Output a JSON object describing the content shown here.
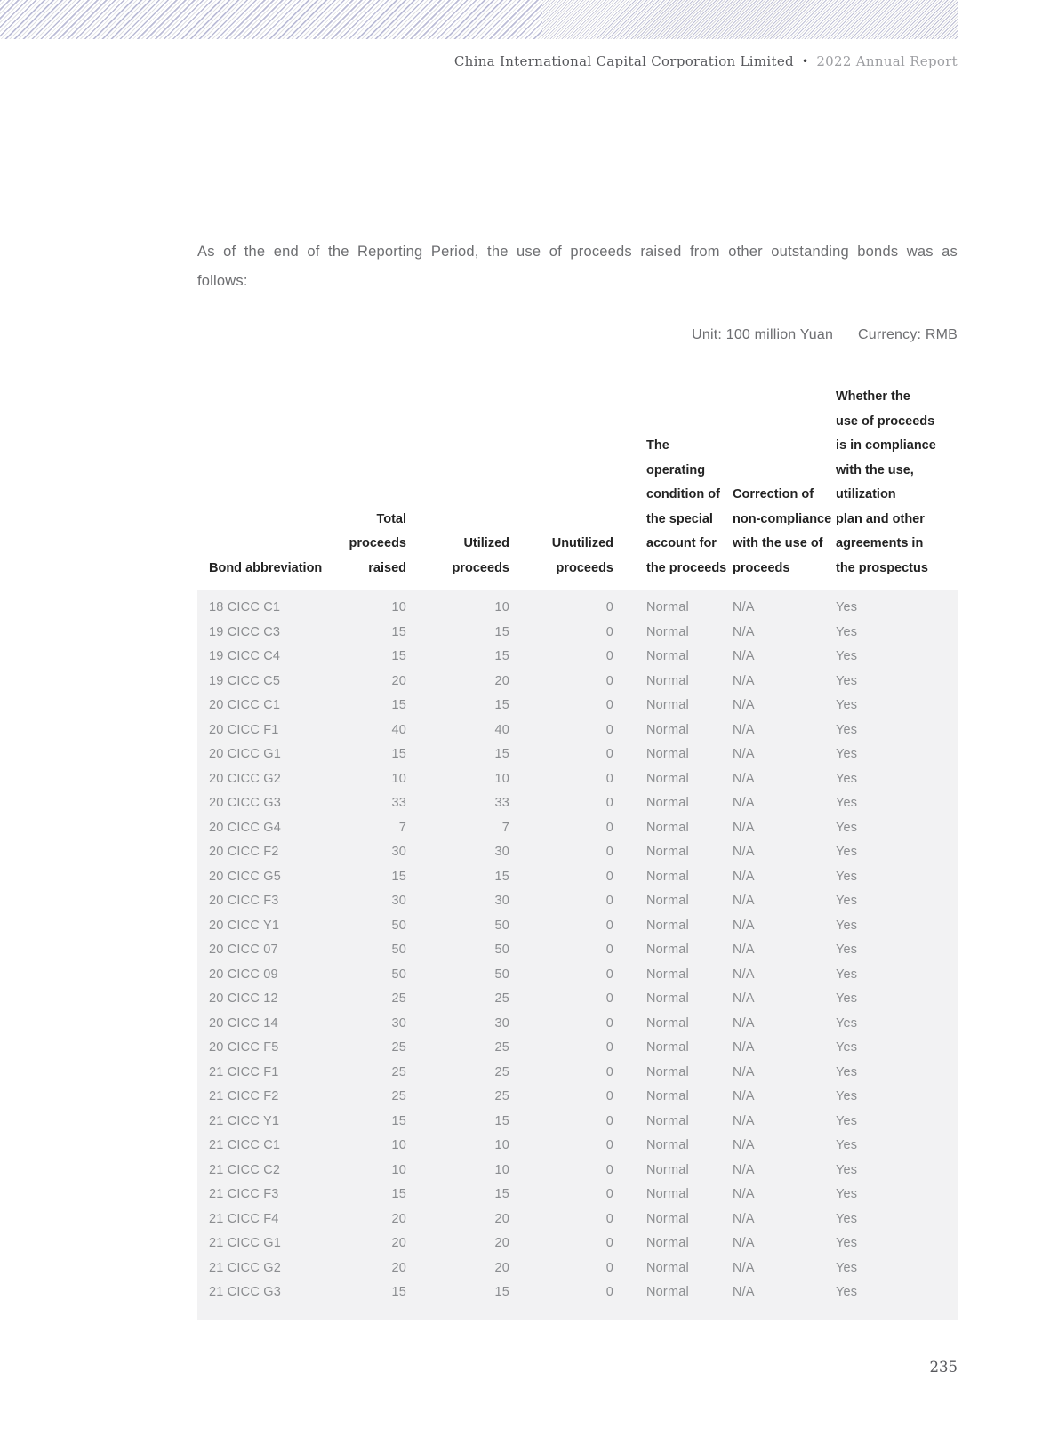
{
  "header": {
    "company": "China International Capital Corporation Limited",
    "separator": "•",
    "report": "2022 Annual Report"
  },
  "intro": {
    "line1": "As of the end of the Reporting Period, the use of proceeds raised from other outstanding bonds was as",
    "line2": "follows:"
  },
  "notes": {
    "unit": "Unit: 100 million Yuan",
    "currency": "Currency: RMB"
  },
  "table": {
    "columns": [
      {
        "id": "bond",
        "align": "left",
        "lines": [
          "Bond abbreviation"
        ]
      },
      {
        "id": "total",
        "align": "right",
        "lines": [
          "Total proceeds",
          "raised"
        ]
      },
      {
        "id": "utilized",
        "align": "right",
        "lines": [
          "Utilized",
          "proceeds"
        ]
      },
      {
        "id": "unutilized",
        "align": "right",
        "lines": [
          "Unutilized",
          "proceeds"
        ]
      },
      {
        "id": "operating",
        "align": "left",
        "lines": [
          "The",
          "operating",
          "condition of",
          "the special",
          "account for",
          "the proceeds"
        ]
      },
      {
        "id": "correction",
        "align": "left",
        "lines": [
          "Correction of",
          "non-compliance",
          "with the use of",
          "proceeds"
        ]
      },
      {
        "id": "compliance",
        "align": "left",
        "lines": [
          "Whether the",
          "use of proceeds",
          "is in compliance",
          "with the use,",
          "utilization",
          "plan and other",
          "agreements in",
          "the prospectus"
        ]
      }
    ],
    "rows": [
      [
        "18 CICC C1",
        "10",
        "10",
        "0",
        "Normal",
        "N/A",
        "Yes"
      ],
      [
        "19 CICC C3",
        "15",
        "15",
        "0",
        "Normal",
        "N/A",
        "Yes"
      ],
      [
        "19 CICC C4",
        "15",
        "15",
        "0",
        "Normal",
        "N/A",
        "Yes"
      ],
      [
        "19 CICC C5",
        "20",
        "20",
        "0",
        "Normal",
        "N/A",
        "Yes"
      ],
      [
        "20 CICC C1",
        "15",
        "15",
        "0",
        "Normal",
        "N/A",
        "Yes"
      ],
      [
        "20 CICC F1",
        "40",
        "40",
        "0",
        "Normal",
        "N/A",
        "Yes"
      ],
      [
        "20 CICC G1",
        "15",
        "15",
        "0",
        "Normal",
        "N/A",
        "Yes"
      ],
      [
        "20 CICC G2",
        "10",
        "10",
        "0",
        "Normal",
        "N/A",
        "Yes"
      ],
      [
        "20 CICC G3",
        "33",
        "33",
        "0",
        "Normal",
        "N/A",
        "Yes"
      ],
      [
        "20 CICC G4",
        "7",
        "7",
        "0",
        "Normal",
        "N/A",
        "Yes"
      ],
      [
        "20 CICC F2",
        "30",
        "30",
        "0",
        "Normal",
        "N/A",
        "Yes"
      ],
      [
        "20 CICC G5",
        "15",
        "15",
        "0",
        "Normal",
        "N/A",
        "Yes"
      ],
      [
        "20 CICC F3",
        "30",
        "30",
        "0",
        "Normal",
        "N/A",
        "Yes"
      ],
      [
        "20 CICC Y1",
        "50",
        "50",
        "0",
        "Normal",
        "N/A",
        "Yes"
      ],
      [
        "20 CICC 07",
        "50",
        "50",
        "0",
        "Normal",
        "N/A",
        "Yes"
      ],
      [
        "20 CICC 09",
        "50",
        "50",
        "0",
        "Normal",
        "N/A",
        "Yes"
      ],
      [
        "20 CICC 12",
        "25",
        "25",
        "0",
        "Normal",
        "N/A",
        "Yes"
      ],
      [
        "20 CICC 14",
        "30",
        "30",
        "0",
        "Normal",
        "N/A",
        "Yes"
      ],
      [
        "20 CICC F5",
        "25",
        "25",
        "0",
        "Normal",
        "N/A",
        "Yes"
      ],
      [
        "21 CICC F1",
        "25",
        "25",
        "0",
        "Normal",
        "N/A",
        "Yes"
      ],
      [
        "21 CICC F2",
        "25",
        "25",
        "0",
        "Normal",
        "N/A",
        "Yes"
      ],
      [
        "21 CICC Y1",
        "15",
        "15",
        "0",
        "Normal",
        "N/A",
        "Yes"
      ],
      [
        "21 CICC C1",
        "10",
        "10",
        "0",
        "Normal",
        "N/A",
        "Yes"
      ],
      [
        "21 CICC C2",
        "10",
        "10",
        "0",
        "Normal",
        "N/A",
        "Yes"
      ],
      [
        "21 CICC F3",
        "15",
        "15",
        "0",
        "Normal",
        "N/A",
        "Yes"
      ],
      [
        "21 CICC F4",
        "20",
        "20",
        "0",
        "Normal",
        "N/A",
        "Yes"
      ],
      [
        "21 CICC G1",
        "20",
        "20",
        "0",
        "Normal",
        "N/A",
        "Yes"
      ],
      [
        "21 CICC G2",
        "20",
        "20",
        "0",
        "Normal",
        "N/A",
        "Yes"
      ],
      [
        "21 CICC G3",
        "15",
        "15",
        "0",
        "Normal",
        "N/A",
        "Yes"
      ]
    ]
  },
  "footer": {
    "page_number": "235"
  },
  "colors": {
    "hatch_accent": "#9798c4",
    "header_text": "#232323",
    "body_text": "#8b8d90",
    "table_body_bg": "#f2f2f3",
    "rule": "#54565a",
    "running_header_dark": "#57585c",
    "running_header_light": "#9d9ea2"
  }
}
